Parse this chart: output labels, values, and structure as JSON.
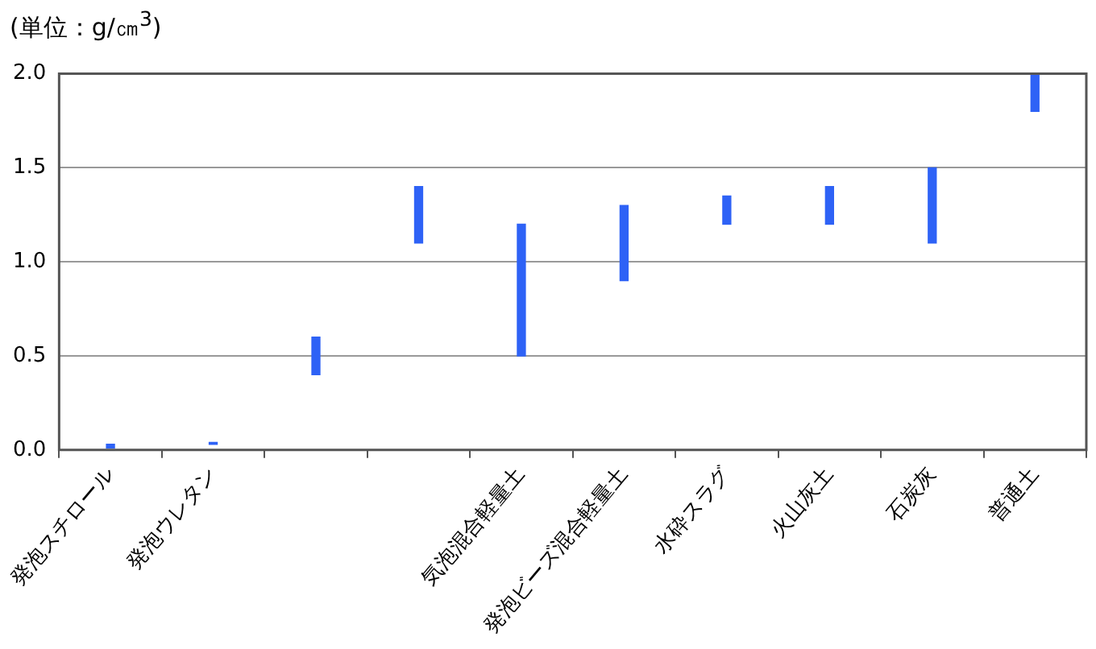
{
  "chart_data": {
    "type": "bar",
    "ylabel": "(単位：g/㎝$^{3}$)",
    "categories": [
      "発泡スチロール",
      "発泡ウレタン",
      null,
      null,
      "気泡混合軽量土",
      "発泡ビーズ混合軽量土",
      "水砕スラグ",
      "火山灰土",
      "石炭灰",
      "普通土"
    ],
    "base": [
      0.01,
      0.03,
      0.4,
      1.1,
      0.5,
      0.9,
      1.2,
      1.2,
      1.1,
      1.8
    ],
    "values": [
      0.02,
      0.01,
      0.2,
      0.3,
      0.7,
      0.4,
      0.15,
      0.2,
      0.4,
      0.2
    ],
    "color": "#2e62f6",
    "ylim": [
      0,
      2
    ],
    "yticks": [
      {
        "value": 0,
        "label": "0.0"
      },
      {
        "value": 0.5,
        "label": "0.5"
      },
      {
        "value": 1,
        "label": "1.0"
      },
      {
        "value": 1.5,
        "label": "1.5"
      },
      {
        "value": 2,
        "label": "2.0"
      }
    ],
    "grid": "y"
  }
}
